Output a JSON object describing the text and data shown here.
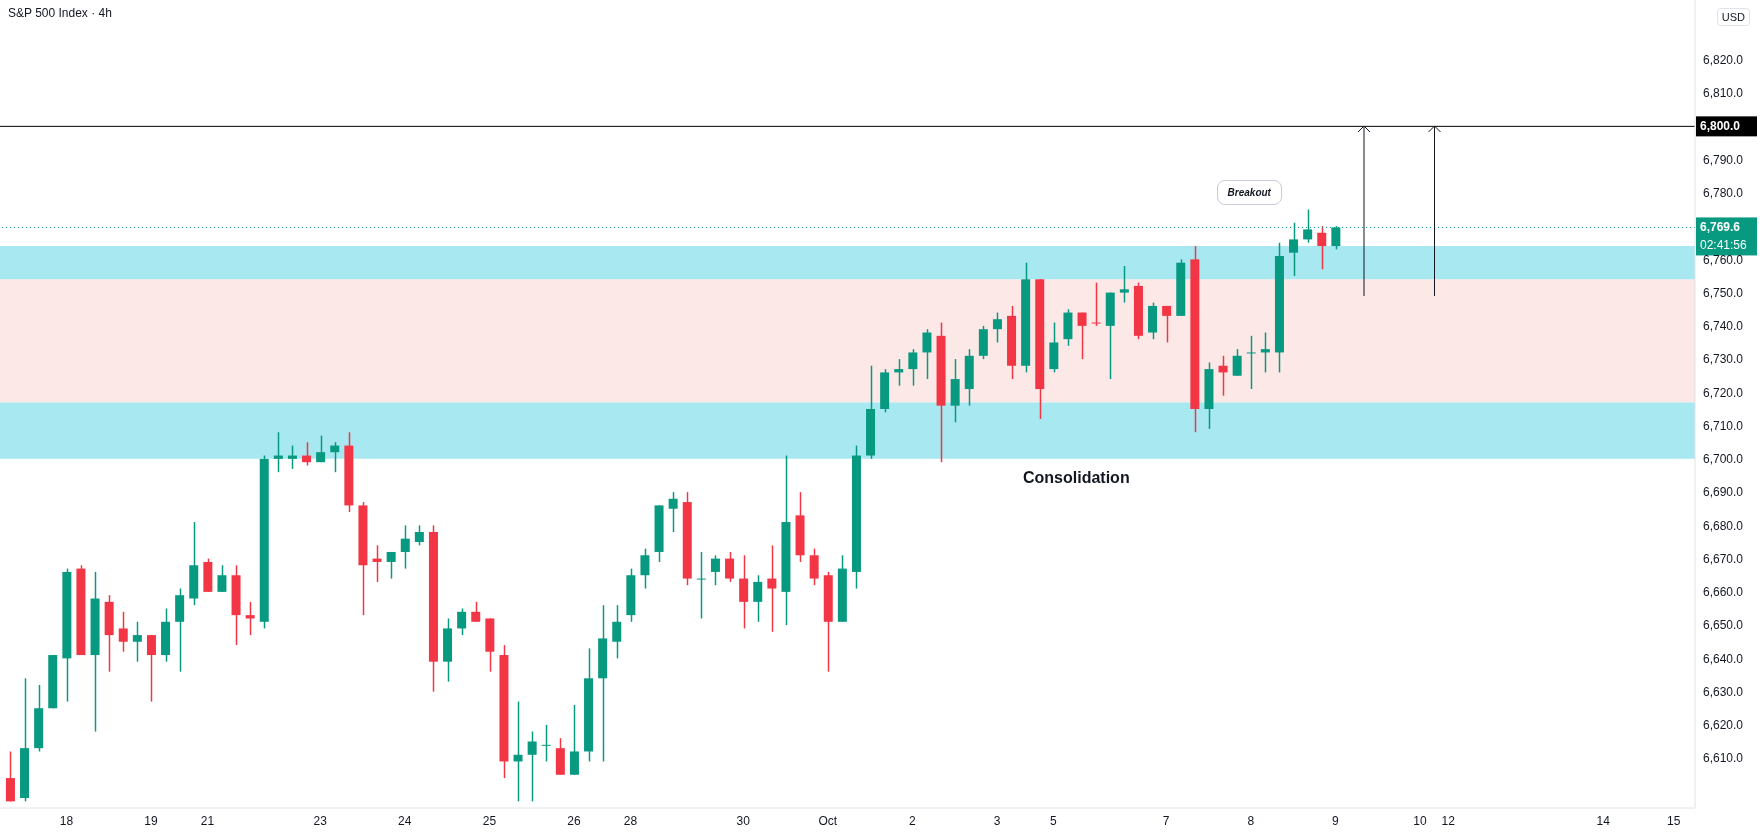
{
  "chart_data": {
    "type": "candlestick",
    "title": "S&P 500 Index · 4h",
    "ylabel": "USD",
    "categories": [
      null,
      null,
      null,
      null,
      "18",
      null,
      null,
      null,
      null,
      null,
      "19",
      null,
      null,
      null,
      "21",
      null,
      null,
      null,
      null,
      null,
      null,
      null,
      "23",
      null,
      null,
      null,
      null,
      null,
      "24",
      null,
      null,
      null,
      null,
      null,
      "25",
      null,
      null,
      null,
      null,
      null,
      "26",
      null,
      null,
      null,
      "28",
      null,
      null,
      null,
      null,
      null,
      null,
      null,
      "30",
      null,
      null,
      null,
      null,
      null,
      "Oct",
      null,
      null,
      null,
      null,
      null,
      "2",
      null,
      null,
      null,
      null,
      null,
      "3",
      null,
      null,
      null,
      "5",
      null,
      null,
      null,
      null,
      null,
      null,
      null,
      "7",
      null,
      null,
      null,
      null,
      null,
      "8",
      null,
      null,
      null,
      null,
      null,
      "9",
      null,
      null,
      null,
      null,
      null,
      "10",
      null,
      "12",
      null,
      null,
      null,
      null,
      null,
      null,
      null,
      null,
      null,
      null,
      "14",
      null,
      null,
      null,
      null,
      "15",
      null
    ],
    "ohlc": [
      [
        6604,
        6612,
        6597,
        6597
      ],
      [
        6598,
        6634,
        6597,
        6613
      ],
      [
        6613,
        6632,
        6612,
        6625
      ],
      [
        6625,
        6641,
        6625,
        6641
      ],
      [
        6640,
        6667,
        6627,
        6666
      ],
      [
        6667,
        6668,
        6641,
        6641
      ],
      [
        6641,
        6666,
        6618,
        6658
      ],
      [
        6657,
        6659,
        6636,
        6647
      ],
      [
        6649,
        6654,
        6642,
        6645
      ],
      [
        6645,
        6651,
        6639,
        6647
      ],
      [
        6647,
        6647,
        6627,
        6641
      ],
      [
        6641,
        6655,
        6639,
        6651
      ],
      [
        6651,
        6661,
        6636,
        6659
      ],
      [
        6658,
        6681,
        6656,
        6668
      ],
      [
        6669,
        6670,
        6660,
        6660
      ],
      [
        6660,
        6668,
        6660,
        6665
      ],
      [
        6665,
        6668,
        6644,
        6653
      ],
      [
        6653,
        6657,
        6647,
        6652
      ],
      [
        6651,
        6701,
        6649,
        6700
      ],
      [
        6700,
        6708,
        6696,
        6701
      ],
      [
        6700,
        6704,
        6697,
        6701
      ],
      [
        6701,
        6705,
        6698,
        6699
      ],
      [
        6699,
        6707,
        6699,
        6702
      ],
      [
        6702,
        6705,
        6696,
        6704
      ],
      [
        6704,
        6708,
        6684,
        6686
      ],
      [
        6686,
        6687,
        6653,
        6668
      ],
      [
        6670,
        6674,
        6663,
        6669
      ],
      [
        6669,
        6672,
        6664,
        6672
      ],
      [
        6672,
        6680,
        6667,
        6676
      ],
      [
        6675,
        6680,
        6674,
        6678
      ],
      [
        6678,
        6680,
        6630,
        6639
      ],
      [
        6639,
        6652,
        6633,
        6649
      ],
      [
        6649,
        6655,
        6647,
        6654
      ],
      [
        6654,
        6657,
        6651,
        6651
      ],
      [
        6652,
        6652,
        6636,
        6642
      ],
      [
        6641,
        6644,
        6604,
        6609
      ],
      [
        6609,
        6627,
        6597,
        6611
      ],
      [
        6611,
        6618,
        6597,
        6615
      ],
      [
        6614,
        6620,
        6609,
        6614
      ],
      [
        6613,
        6616,
        6605,
        6605
      ],
      [
        6605,
        6626,
        6605,
        6612
      ],
      [
        6612,
        6643,
        6609,
        6634
      ],
      [
        6634,
        6656,
        6609,
        6646
      ],
      [
        6645,
        6656,
        6640,
        6651
      ],
      [
        6653,
        6667,
        6651,
        6665
      ],
      [
        6665,
        6673,
        6661,
        6671
      ],
      [
        6672,
        6686,
        6669,
        6686
      ],
      [
        6685,
        6690,
        6678,
        6688
      ],
      [
        6687,
        6690,
        6662,
        6664
      ],
      [
        6664,
        6672,
        6652,
        6664
      ],
      [
        6666,
        6671,
        6662,
        6670
      ],
      [
        6670,
        6672,
        6663,
        6664
      ],
      [
        6664,
        6671,
        6649,
        6657
      ],
      [
        6657,
        6665,
        6651,
        6663
      ],
      [
        6664,
        6674,
        6648,
        6661
      ],
      [
        6660,
        6701,
        6650,
        6681
      ],
      [
        6683,
        6690,
        6669,
        6671
      ],
      [
        6671,
        6673,
        6662,
        6664
      ],
      [
        6665,
        6666,
        6636,
        6651
      ],
      [
        6651,
        6671,
        6651,
        6667
      ],
      [
        6666,
        6704,
        6661,
        6701
      ],
      [
        6701,
        6728,
        6700,
        6715
      ],
      [
        6715,
        6727,
        6714,
        6726
      ],
      [
        6726,
        6730,
        6722,
        6727
      ],
      [
        6727,
        6733,
        6722,
        6732
      ],
      [
        6732,
        6739,
        6724,
        6738
      ],
      [
        6737,
        6741,
        6699,
        6716
      ],
      [
        6716,
        6730,
        6711,
        6724
      ],
      [
        6721,
        6733,
        6716,
        6731
      ],
      [
        6731,
        6740,
        6730,
        6739
      ],
      [
        6739,
        6744,
        6735,
        6742
      ],
      [
        6743,
        6746,
        6724,
        6728
      ],
      [
        6728,
        6759,
        6726,
        6754
      ],
      [
        6754,
        6754,
        6712,
        6721
      ],
      [
        6727,
        6741,
        6726,
        6735
      ],
      [
        6736,
        6745,
        6734,
        6744
      ],
      [
        6744,
        6744,
        6730,
        6740
      ],
      [
        6741,
        6753,
        6740,
        6741
      ],
      [
        6740,
        6750,
        6724,
        6750
      ],
      [
        6750,
        6758,
        6747,
        6751
      ],
      [
        6752,
        6753,
        6736,
        6737
      ],
      [
        6738,
        6747,
        6736,
        6746
      ],
      [
        6746,
        6746,
        6735,
        6743
      ],
      [
        6743,
        6760,
        6743,
        6759
      ],
      [
        6760,
        6764,
        6708,
        6715
      ],
      [
        6715,
        6729,
        6709,
        6727
      ],
      [
        6728,
        6731,
        6719,
        6726
      ],
      [
        6725,
        6733,
        6725,
        6731
      ],
      [
        6732,
        6737,
        6721,
        6732
      ],
      [
        6732,
        6738,
        6726,
        6733
      ],
      [
        6732,
        6765,
        6726,
        6761
      ],
      [
        6762,
        6771,
        6755,
        6766
      ],
      [
        6766,
        6775,
        6765,
        6769
      ],
      [
        6768,
        6770,
        6757,
        6764
      ],
      [
        6764,
        6770,
        6763,
        6769.6
      ],
      null,
      null,
      null,
      null,
      null,
      null,
      null,
      null,
      null,
      null,
      null,
      null,
      null,
      null,
      null,
      null,
      null,
      null,
      null,
      null,
      null,
      null,
      null,
      null,
      null
    ],
    "colors": [
      "#f23645",
      "#089981",
      "#089981",
      "#089981",
      "#089981",
      "#f23645",
      "#089981",
      "#f23645",
      "#f23645",
      "#089981",
      "#f23645",
      "#089981",
      "#089981",
      "#089981",
      "#f23645",
      "#089981",
      "#f23645",
      "#f23645",
      "#089981",
      "#089981",
      "#089981",
      "#f23645",
      "#089981",
      "#089981",
      "#f23645",
      "#f23645",
      "#f23645",
      "#089981",
      "#089981",
      "#089981",
      "#f23645",
      "#089981",
      "#089981",
      "#f23645",
      "#f23645",
      "#f23645",
      "#089981",
      "#089981",
      "#089981",
      "#f23645",
      "#089981",
      "#089981",
      "#089981",
      "#089981",
      "#089981",
      "#089981",
      "#089981",
      "#089981",
      "#f23645",
      "#089981",
      "#089981",
      "#f23645",
      "#f23645",
      "#089981",
      "#f23645",
      "#089981",
      "#f23645",
      "#f23645",
      "#f23645",
      "#089981",
      "#089981",
      "#089981",
      "#089981",
      "#089981",
      "#089981",
      "#089981",
      "#f23645",
      "#089981",
      "#089981",
      "#089981",
      "#089981",
      "#f23645",
      "#089981",
      "#f23645",
      "#089981",
      "#089981",
      "#f23645",
      "#f23645",
      "#089981",
      "#089981",
      "#f23645",
      "#089981",
      "#f23645",
      "#089981",
      "#f23645",
      "#089981",
      "#f23645",
      "#089981",
      "#089981",
      "#089981",
      "#089981",
      "#089981",
      "#089981",
      "#f23645",
      "#089981",
      null,
      null,
      null,
      null,
      null,
      null,
      null,
      null,
      null,
      null,
      null,
      null,
      null,
      null,
      null,
      null,
      null,
      null,
      null,
      null,
      null,
      null,
      null,
      null,
      null
    ],
    "ylim": [
      6595,
      6838
    ],
    "yticks": [
      {
        "value": 6610,
        "label": "6,610.0"
      },
      {
        "value": 6620,
        "label": "6,620.0"
      },
      {
        "value": 6630,
        "label": "6,630.0"
      },
      {
        "value": 6640,
        "label": "6,640.0"
      },
      {
        "value": 6650,
        "label": "6,650.0"
      },
      {
        "value": 6660,
        "label": "6,660.0"
      },
      {
        "value": 6670,
        "label": "6,670.0"
      },
      {
        "value": 6680,
        "label": "6,680.0"
      },
      {
        "value": 6690,
        "label": "6,690.0"
      },
      {
        "value": 6700,
        "label": "6,700.0"
      },
      {
        "value": 6710,
        "label": "6,710.0"
      },
      {
        "value": 6720,
        "label": "6,720.0"
      },
      {
        "value": 6730,
        "label": "6,730.0"
      },
      {
        "value": 6740,
        "label": "6,740.0"
      },
      {
        "value": 6750,
        "label": "6,750.0"
      },
      {
        "value": 6760,
        "label": "6,760.0"
      },
      {
        "value": 6780,
        "label": "6,780.0"
      },
      {
        "value": 6790,
        "label": "6,790.0"
      },
      {
        "value": 6810,
        "label": "6,810.0"
      },
      {
        "value": 6820,
        "label": "6,820.0"
      }
    ],
    "bands": [
      {
        "axis": "y",
        "from": 6700,
        "to": 6717,
        "color": "#a8e8f0"
      },
      {
        "axis": "y",
        "from": 6717,
        "to": 6754,
        "color": "#fde8e8"
      },
      {
        "axis": "y",
        "from": 6754,
        "to": 6764,
        "color": "#a8e8f0"
      }
    ],
    "ref_lines": [
      {
        "axis": "y",
        "value": 6800,
        "label": "6,800.0",
        "color": "#000000",
        "line_style": "solid"
      },
      {
        "axis": "y",
        "value": 6769.6,
        "label": "6,769.6",
        "color": "#089981",
        "line_style": "dotted"
      }
    ],
    "annotations": [
      "Breakout",
      "Consolidation",
      "02:41:56"
    ]
  }
}
